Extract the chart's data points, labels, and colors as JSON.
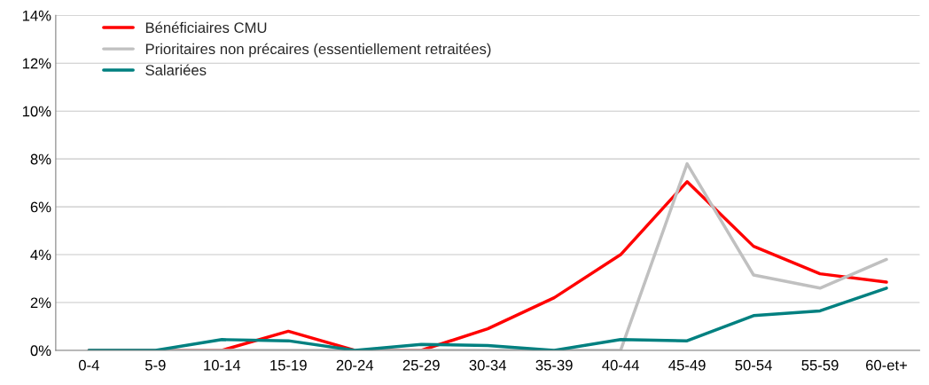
{
  "chart_data": {
    "type": "line",
    "categories": [
      "0-4",
      "5-9",
      "10-14",
      "15-19",
      "20-24",
      "25-29",
      "30-34",
      "35-39",
      "40-44",
      "45-49",
      "50-54",
      "55-59",
      "60-et+"
    ],
    "series": [
      {
        "name": "Bénéficiaires CMU",
        "color": "#ff0000",
        "values": [
          0,
          0,
          0,
          0.8,
          0,
          0,
          0.9,
          2.2,
          4.0,
          7.05,
          4.35,
          3.2,
          2.85
        ]
      },
      {
        "name": "Prioritaires non précaires (essentiellement retraitées)",
        "color": "#c0c0c0",
        "values": [
          0,
          0,
          0,
          0,
          0,
          0,
          0,
          0,
          0,
          7.8,
          3.15,
          2.6,
          3.8
        ]
      },
      {
        "name": "Salariées",
        "color": "#008080",
        "values": [
          0,
          0,
          0.45,
          0.4,
          0,
          0.25,
          0.2,
          0,
          0.45,
          0.4,
          1.45,
          1.65,
          2.6
        ]
      }
    ],
    "ylim": [
      0,
      14
    ],
    "yticks": [
      {
        "value": 0,
        "label": "0%"
      },
      {
        "value": 2,
        "label": "2%"
      },
      {
        "value": 4,
        "label": "4%"
      },
      {
        "value": 6,
        "label": "6%"
      },
      {
        "value": 8,
        "label": "8%"
      },
      {
        "value": 10,
        "label": "10%"
      },
      {
        "value": 12,
        "label": "12%"
      },
      {
        "value": 14,
        "label": "14%"
      }
    ],
    "grid": "y",
    "legend": "top left",
    "marker": "none",
    "line_style": "solid"
  }
}
